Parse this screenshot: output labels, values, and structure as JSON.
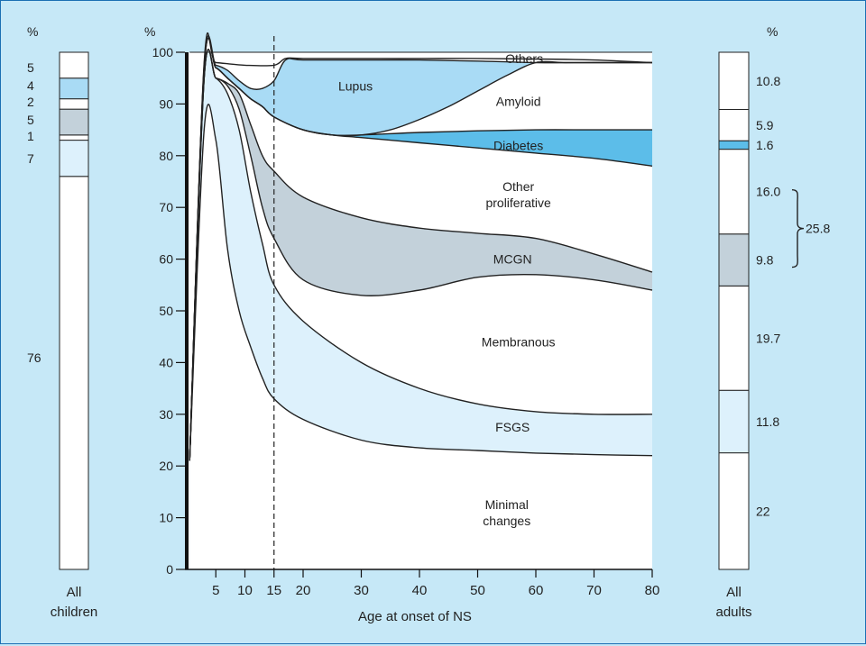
{
  "chart_data": [
    {
      "type": "area",
      "xlabel": "Age at onset of NS",
      "ylabel": "%",
      "xlim": [
        0,
        80
      ],
      "ylim": [
        0,
        100
      ],
      "x_ticks": [
        "5",
        "10",
        "15",
        "20",
        "30",
        "40",
        "50",
        "60",
        "70",
        "80"
      ],
      "y_ticks": [
        "0",
        "10",
        "20",
        "30",
        "40",
        "50",
        "60",
        "70",
        "80",
        "90",
        "100"
      ],
      "marker_line": {
        "x": 15,
        "style": "dashed"
      },
      "colors": {
        "white": "#ffffff",
        "pale_blue": "#ddf1fc",
        "grey": "#c3d1da",
        "mid_blue": "#a9dbf5",
        "bright_blue": "#5cbde9"
      },
      "series": [
        {
          "name": "Minimal changes",
          "label_lines": [
            "Minimal",
            "changes"
          ],
          "fill": "white",
          "x": [
            0.5,
            3,
            5,
            7,
            9,
            11,
            13,
            15,
            20,
            30,
            40,
            50,
            60,
            70,
            80
          ],
          "y": [
            21,
            85,
            83,
            62,
            50,
            43,
            37,
            33,
            29,
            25,
            23.5,
            23,
            22.5,
            22.2,
            22
          ]
        },
        {
          "name": "FSGS",
          "label_lines": [
            "FSGS"
          ],
          "fill": "pale_blue",
          "x": [
            0.5,
            3,
            5,
            7,
            9,
            11,
            13,
            15,
            20,
            30,
            40,
            50,
            60,
            70,
            80
          ],
          "y": [
            21,
            95,
            95,
            92,
            85,
            73,
            63,
            55,
            48,
            40,
            35,
            32,
            30.5,
            30,
            30
          ]
        },
        {
          "name": "Membranous",
          "label_lines": [
            "Membranous"
          ],
          "fill": "white",
          "x": [
            0.5,
            3,
            5,
            7,
            9,
            11,
            13,
            15,
            20,
            30,
            40,
            50,
            60,
            70,
            80
          ],
          "y": [
            21,
            95,
            95,
            93.5,
            89,
            80,
            70,
            64,
            56,
            53,
            54,
            56.5,
            57,
            56,
            54
          ]
        },
        {
          "name": "MCGN",
          "label_lines": [
            "MCGN"
          ],
          "fill": "grey",
          "x": [
            0.5,
            3,
            5,
            7,
            9,
            11,
            13,
            15,
            20,
            30,
            40,
            50,
            60,
            70,
            80
          ],
          "y": [
            21,
            95,
            95,
            94,
            92,
            86,
            80,
            77,
            72,
            68,
            66,
            65,
            64,
            61,
            57.5
          ]
        },
        {
          "name": "Other proliferative",
          "label_lines": [
            "Other",
            "proliferative"
          ],
          "fill": "white",
          "x": [
            0.5,
            3,
            5,
            7,
            9,
            11,
            13,
            15,
            20,
            25,
            30,
            40,
            50,
            60,
            70,
            80
          ],
          "y": [
            21,
            97,
            97,
            95,
            93,
            91,
            89.5,
            87.5,
            85,
            84,
            83.5,
            82.5,
            81.5,
            80.5,
            79.5,
            78
          ]
        },
        {
          "name": "Diabetes",
          "label_lines": [
            "Diabetes"
          ],
          "fill": "bright_blue",
          "x": [
            0.5,
            3,
            5,
            7,
            9,
            11,
            13,
            15,
            20,
            25,
            30,
            40,
            50,
            60,
            70,
            80
          ],
          "y": [
            21,
            97,
            97,
            95,
            93,
            91,
            89.5,
            87.5,
            85,
            84,
            84,
            84.5,
            84.8,
            85,
            85,
            85
          ]
        },
        {
          "name": "Amyloid",
          "label_lines": [
            "Amyloid"
          ],
          "fill": "white",
          "x": [
            0.5,
            3,
            5,
            7,
            9,
            11,
            13,
            15,
            20,
            25,
            30,
            35,
            40,
            45,
            50,
            55,
            60,
            65,
            70,
            80
          ],
          "y": [
            21,
            97,
            97,
            95,
            93,
            91,
            89.5,
            87.5,
            85,
            84,
            84,
            85,
            87,
            89.5,
            92.5,
            95.5,
            98,
            98,
            98,
            98
          ]
        },
        {
          "name": "Lupus",
          "label_lines": [
            "Lupus"
          ],
          "fill": "mid_blue",
          "x": [
            0.5,
            3,
            5,
            7,
            9,
            11,
            13,
            15,
            17,
            20,
            30,
            40,
            50,
            60,
            70,
            80
          ],
          "y": [
            21,
            97.5,
            97.5,
            96.5,
            94.5,
            93,
            93,
            94.5,
            98.5,
            98.5,
            98.5,
            98.5,
            98.3,
            98,
            98,
            98
          ]
        },
        {
          "name": "Others",
          "label_lines": [
            "Others"
          ],
          "fill": "white",
          "x": [
            0.5,
            3,
            5,
            10,
            15,
            17,
            20,
            30,
            40,
            50,
            60,
            70,
            80
          ],
          "y": [
            21,
            98,
            98,
            97.5,
            97.5,
            98.8,
            98.8,
            98.8,
            98.8,
            98.8,
            98.7,
            98.5,
            98
          ]
        }
      ]
    },
    {
      "type": "bar",
      "stacked": true,
      "category": "All children",
      "category_lines": [
        "All",
        "children"
      ],
      "unit_label": "%",
      "segments": [
        {
          "name": "Minimal changes",
          "value": 76,
          "fill": "white"
        },
        {
          "name": "FSGS",
          "value": 7,
          "fill": "pale_blue"
        },
        {
          "name": "Membranous",
          "value": 1,
          "fill": "white"
        },
        {
          "name": "MCGN",
          "value": 5,
          "fill": "grey"
        },
        {
          "name": "Other proliferative",
          "value": 2,
          "fill": "white"
        },
        {
          "name": "Lupus",
          "value": 4,
          "fill": "mid_blue"
        },
        {
          "name": "Others",
          "value": 5,
          "fill": "white"
        }
      ],
      "value_labels": [
        "5",
        "4",
        "2",
        "5",
        "1",
        "7",
        "76"
      ]
    },
    {
      "type": "bar",
      "stacked": true,
      "category": "All adults",
      "category_lines": [
        "All",
        "adults"
      ],
      "unit_label": "%",
      "segments": [
        {
          "name": "Minimal changes",
          "value": 22,
          "label": "22",
          "fill": "white"
        },
        {
          "name": "FSGS",
          "value": 11.8,
          "label": "11.8",
          "fill": "pale_blue"
        },
        {
          "name": "Membranous",
          "value": 19.7,
          "label": "19.7",
          "fill": "white"
        },
        {
          "name": "MCGN",
          "value": 9.8,
          "label": "9.8",
          "fill": "grey"
        },
        {
          "name": "Other proliferative",
          "value": 16.0,
          "label": "16.0",
          "fill": "white"
        },
        {
          "name": "Diabetes",
          "value": 1.6,
          "label": "1.6",
          "fill": "bright_blue"
        },
        {
          "name": "Amyloid",
          "value": 5.9,
          "label": "5.9",
          "fill": "white"
        },
        {
          "name": "Lupus and others",
          "value": 10.8,
          "label": "10.8",
          "fill": "white"
        }
      ],
      "bracket_label": "25.8"
    }
  ]
}
